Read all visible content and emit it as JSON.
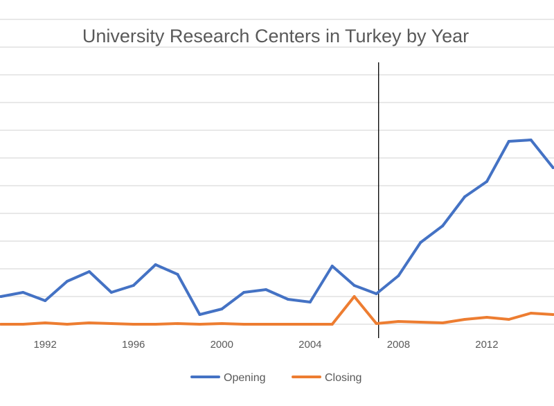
{
  "chart_data": {
    "type": "line",
    "title": "University Research Centers in Turkey by Year",
    "xlabel": "",
    "ylabel": "",
    "x": [
      1990,
      1991,
      1992,
      1993,
      1994,
      1995,
      1996,
      1997,
      1998,
      1999,
      2000,
      2001,
      2002,
      2003,
      2004,
      2005,
      2006,
      2007,
      2008,
      2009,
      2010,
      2011,
      2012,
      2013,
      2014,
      2015
    ],
    "x_tick_labels": [
      "1992",
      "1996",
      "2000",
      "2004",
      "2008",
      "2012"
    ],
    "x_tick_values": [
      1992,
      1996,
      2000,
      2004,
      2008,
      2012
    ],
    "xlim": [
      1989.8,
      2015.2
    ],
    "ylim": [
      0,
      225
    ],
    "y_gridlines": [
      0,
      20,
      40,
      60,
      80,
      100,
      120,
      140,
      160,
      180,
      200,
      220
    ],
    "y_tick_labels_visible": false,
    "grid": true,
    "legend_position": "bottom",
    "marker_line": {
      "x": 2007.1,
      "color": "#000000"
    },
    "series": [
      {
        "name": "Opening",
        "color": "#4472C4",
        "values": [
          20,
          23,
          17,
          31,
          38,
          23,
          28,
          43,
          36,
          7,
          11,
          23,
          25,
          18,
          16,
          42,
          28,
          22,
          35,
          59,
          71,
          92,
          103,
          132,
          133,
          113
        ]
      },
      {
        "name": "Closing",
        "color": "#ED7D31",
        "values": [
          0,
          0,
          1,
          0,
          1,
          0.5,
          0,
          0,
          0.5,
          0,
          0.5,
          0,
          0,
          0,
          0,
          0,
          20,
          0.5,
          2,
          1.5,
          1,
          3.5,
          5,
          3.5,
          8,
          7
        ]
      }
    ]
  }
}
